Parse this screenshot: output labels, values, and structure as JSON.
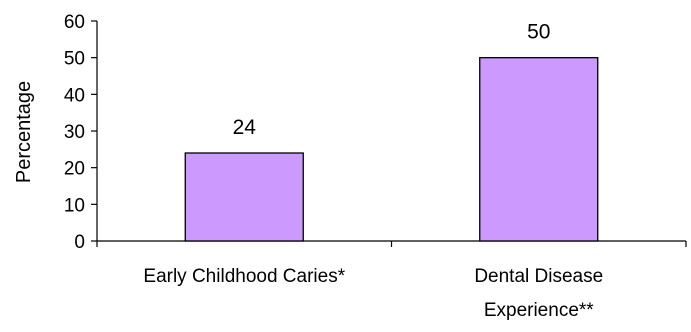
{
  "chart_data": {
    "type": "bar",
    "title": "",
    "xlabel": "",
    "ylabel": "Percentage",
    "categories": [
      [
        "Early Childhood Caries*"
      ],
      [
        "Dental Disease",
        "Experience**"
      ]
    ],
    "values": [
      24,
      50
    ],
    "data_labels": [
      "24",
      "50"
    ],
    "ylim": [
      0,
      60
    ],
    "yticks": [
      0,
      10,
      20,
      30,
      40,
      50,
      60
    ],
    "ytick_labels": [
      "0",
      "10",
      "20",
      "30",
      "40",
      "50",
      "60"
    ],
    "grid": false,
    "legend": "none",
    "bar_color": "#cc99ff",
    "bar_border_color": "#000000"
  }
}
